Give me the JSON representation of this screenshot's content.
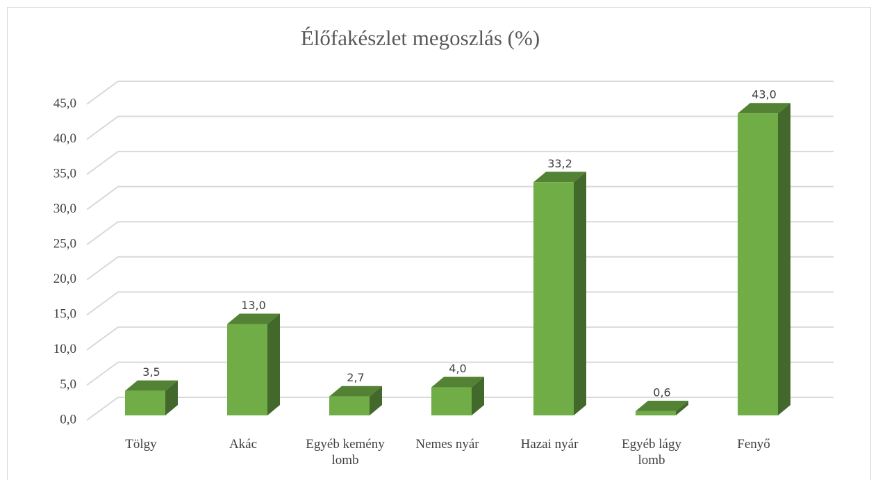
{
  "chart_data": {
    "type": "bar3d",
    "title": "Élőfakészlet megoszlás (%)",
    "categories": [
      "Tölgy",
      "Akác",
      "Egyéb kemény lomb",
      "Nemes nyár",
      "Hazai nyár",
      "Egyéb lágy lomb",
      "Fenyő"
    ],
    "values": [
      3.5,
      13.0,
      2.7,
      4.0,
      33.2,
      0.6,
      43.0
    ],
    "value_labels": [
      "3,5",
      "13,0",
      "2,7",
      "4,0",
      "33,2",
      "0,6",
      "43,0"
    ],
    "color": "#70ad47",
    "ylim": [
      0,
      45
    ],
    "yticks": [
      {
        "value": 0,
        "label": "0,0"
      },
      {
        "value": 5,
        "label": "5,0"
      },
      {
        "value": 10,
        "label": "10,0"
      },
      {
        "value": 15,
        "label": "15,0"
      },
      {
        "value": 20,
        "label": "20,0"
      },
      {
        "value": 25,
        "label": "25,0"
      },
      {
        "value": 30,
        "label": "30,0"
      },
      {
        "value": 35,
        "label": "35,0"
      },
      {
        "value": 40,
        "label": "40,0"
      },
      {
        "value": 45,
        "label": "45,0"
      }
    ],
    "grid": true
  }
}
